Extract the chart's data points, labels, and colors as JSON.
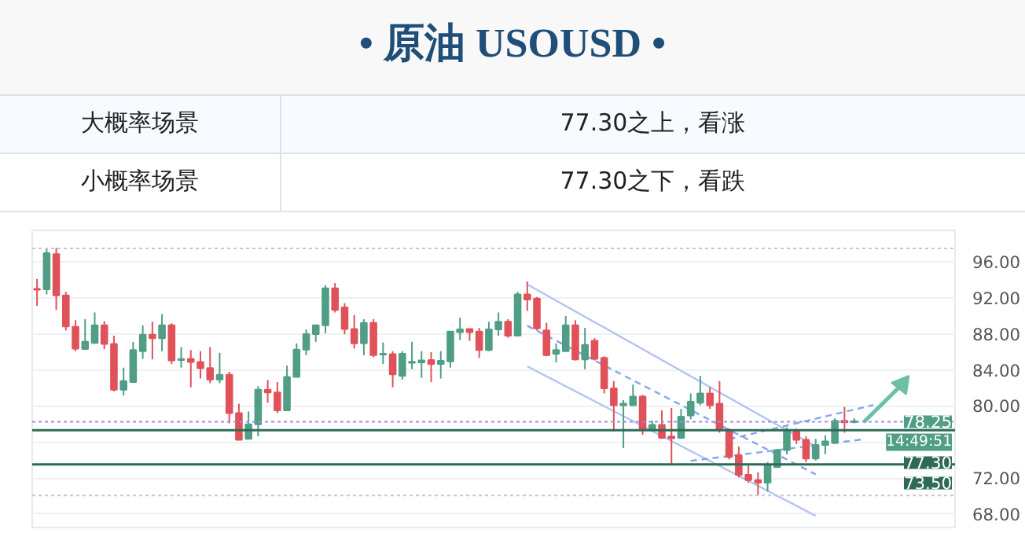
{
  "chart_data": {
    "type": "candlestick",
    "title": "• 原油  USOUSD •",
    "annotations": [
      "大概率场景",
      "77.30之上，看涨",
      "小概率场景",
      "77.30之下，看跌",
      "14:49:51"
    ],
    "categories": [
      null,
      null,
      null,
      null,
      null,
      null,
      null,
      null,
      null,
      null,
      null,
      null,
      null,
      null,
      null,
      null,
      null,
      null,
      null,
      null,
      null,
      null,
      null,
      null,
      null,
      null,
      null,
      null,
      null,
      null,
      null,
      null,
      null,
      null,
      null,
      null,
      null,
      null,
      null,
      null,
      null,
      null,
      null,
      null,
      null,
      null,
      null,
      null,
      null,
      null,
      null,
      null,
      null,
      null,
      null,
      null,
      null,
      null,
      null,
      null,
      null,
      null,
      null,
      null,
      null,
      null,
      null,
      null,
      null,
      null,
      null,
      null,
      null,
      null,
      null,
      null,
      null,
      null,
      null,
      null,
      null,
      null,
      null,
      null,
      null,
      null,
      null,
      null,
      null,
      null,
      null,
      null,
      null,
      null,
      null,
      null
    ],
    "ohlc": [
      [
        93.0,
        94.1,
        91.1,
        92.9
      ],
      [
        92.96,
        97.4,
        92.4,
        96.97
      ],
      [
        96.85,
        97.54,
        90.67,
        92.27
      ],
      [
        92.27,
        92.67,
        88.38,
        88.83
      ],
      [
        88.78,
        89.52,
        86.08,
        86.37
      ],
      [
        86.31,
        89.63,
        86.31,
        87.12
      ],
      [
        87.0,
        90.38,
        87.0,
        88.95
      ],
      [
        88.95,
        89.41,
        86.31,
        86.89
      ],
      [
        86.89,
        87.8,
        81.62,
        81.79
      ],
      [
        81.79,
        84.25,
        81.16,
        82.76
      ],
      [
        82.65,
        87.1,
        82.65,
        86.2
      ],
      [
        86.08,
        88.95,
        85.23,
        87.92
      ],
      [
        87.92,
        89.35,
        85.17,
        87.52
      ],
      [
        87.52,
        90.21,
        86.08,
        88.95
      ],
      [
        88.95,
        89.18,
        84.65,
        85.05
      ],
      [
        85.1,
        86.54,
        84.25,
        85.2
      ],
      [
        85.23,
        86.2,
        82.07,
        84.88
      ],
      [
        84.88,
        86.08,
        83.05,
        84.2
      ],
      [
        84.2,
        86.54,
        82.53,
        82.93
      ],
      [
        82.93,
        85.9,
        82.53,
        83.45
      ],
      [
        83.45,
        83.79,
        78.07,
        79.21
      ],
      [
        79.21,
        80.24,
        76.23,
        76.23
      ],
      [
        76.34,
        79.38,
        76.34,
        77.95
      ],
      [
        77.95,
        82.19,
        76.63,
        81.79
      ],
      [
        81.79,
        82.88,
        80.36,
        81.5
      ],
      [
        81.5,
        82.65,
        79.2,
        79.5
      ],
      [
        79.5,
        84.48,
        79.5,
        83.22
      ],
      [
        83.22,
        86.94,
        83.22,
        86.26
      ],
      [
        86.26,
        88.49,
        85.63,
        87.97
      ],
      [
        87.97,
        88.95,
        87.12,
        88.95
      ],
      [
        88.95,
        93.42,
        88.09,
        93.07
      ],
      [
        93.07,
        93.64,
        90.38,
        90.67
      ],
      [
        90.95,
        91.41,
        87.97,
        88.55
      ],
      [
        88.55,
        90.09,
        86.37,
        86.94
      ],
      [
        86.94,
        89.63,
        85.63,
        89.23
      ],
      [
        89.23,
        89.63,
        85.4,
        85.63
      ],
      [
        85.7,
        87.06,
        84.65,
        85.8
      ],
      [
        85.74,
        86.08,
        82.07,
        83.51
      ],
      [
        83.34,
        86.08,
        82.93,
        85.8
      ],
      [
        84.8,
        87.12,
        84.08,
        84.9
      ],
      [
        84.83,
        86.08,
        83.11,
        85.05
      ],
      [
        85.1,
        85.97,
        82.65,
        84.65
      ],
      [
        84.65,
        86.08,
        83.05,
        85.0
      ],
      [
        84.94,
        88.26,
        84.25,
        88.26
      ],
      [
        88.2,
        89.8,
        87.34,
        88.49
      ],
      [
        88.55,
        88.55,
        87.23,
        88.2
      ],
      [
        88.26,
        88.66,
        85.34,
        86.2
      ],
      [
        86.2,
        89.35,
        86.08,
        88.49
      ],
      [
        88.49,
        90.38,
        87.8,
        89.35
      ],
      [
        89.35,
        89.63,
        87.57,
        87.8
      ],
      [
        87.8,
        92.67,
        87.8,
        92.38
      ],
      [
        92.38,
        93.82,
        90.55,
        91.81
      ],
      [
        91.93,
        92.1,
        88.38,
        88.6
      ],
      [
        88.38,
        89.23,
        85.51,
        85.63
      ],
      [
        85.8,
        86.94,
        84.83,
        86.2
      ],
      [
        86.08,
        89.98,
        86.08,
        88.95
      ],
      [
        88.95,
        89.52,
        85.05,
        85.17
      ],
      [
        85.17,
        88.66,
        84.08,
        86.77
      ],
      [
        87.23,
        87.52,
        85.05,
        85.23
      ],
      [
        85.34,
        85.51,
        81.39,
        81.96
      ],
      [
        81.96,
        82.76,
        77.21,
        80.07
      ],
      [
        80.07,
        80.64,
        75.32,
        80.24
      ],
      [
        80.07,
        82.36,
        80.07,
        81.04
      ],
      [
        81.04,
        81.22,
        76.8,
        77.38
      ],
      [
        77.38,
        78.35,
        77.21,
        77.9
      ],
      [
        77.9,
        79.5,
        76.34,
        76.46
      ],
      [
        76.6,
        79.78,
        73.49,
        76.4
      ],
      [
        76.46,
        79.67,
        76.46,
        78.81
      ],
      [
        78.93,
        81.39,
        78.52,
        80.47
      ],
      [
        80.36,
        83.34,
        80.07,
        81.39
      ],
      [
        81.39,
        82.07,
        79.67,
        80.07
      ],
      [
        80.24,
        82.76,
        77.03,
        77.32
      ],
      [
        77.32,
        77.5,
        74.06,
        74.34
      ],
      [
        74.51,
        75.49,
        72.05,
        72.34
      ],
      [
        72.34,
        73.37,
        71.48,
        71.77
      ],
      [
        71.77,
        72.63,
        70.05,
        71.48
      ],
      [
        71.48,
        73.77,
        70.5,
        73.49
      ],
      [
        73.2,
        75.2,
        73.2,
        75.09
      ],
      [
        75.09,
        77.61,
        74.63,
        77.21
      ],
      [
        77.21,
        77.5,
        75.78,
        76.23
      ],
      [
        76.23,
        76.63,
        73.77,
        74.17
      ],
      [
        74.17,
        76.34,
        73.94,
        75.66
      ],
      [
        75.66,
        76.74,
        74.63,
        76.06
      ],
      [
        75.89,
        78.64,
        75.89,
        78.35
      ],
      [
        78.35,
        79.9,
        77.03,
        78.18
      ],
      [
        78.2,
        78.64,
        78.07,
        78.3
      ],
      null,
      null,
      null,
      null,
      null,
      null,
      null,
      null,
      null,
      null
    ],
    "colors": [
      "#e0525a",
      "#4f9e85",
      "#e0525a",
      "#e0525a",
      "#e0525a",
      "#4f9e85",
      "#4f9e85",
      "#e0525a",
      "#e0525a",
      "#4f9e85",
      "#4f9e85",
      "#4f9e85",
      "#e0525a",
      "#4f9e85",
      "#e0525a",
      "#4f9e85",
      "#e0525a",
      "#e0525a",
      "#e0525a",
      "#4f9e85",
      "#e0525a",
      "#e0525a",
      "#4f9e85",
      "#4f9e85",
      "#e0525a",
      "#e0525a",
      "#4f9e85",
      "#4f9e85",
      "#4f9e85",
      "#4f9e85",
      "#4f9e85",
      "#e0525a",
      "#e0525a",
      "#e0525a",
      "#4f9e85",
      "#e0525a",
      "#4f9e85",
      "#e0525a",
      "#4f9e85",
      "#4f9e85",
      "#4f9e85",
      "#e0525a",
      "#4f9e85",
      "#4f9e85",
      "#4f9e85",
      "#e0525a",
      "#e0525a",
      "#4f9e85",
      "#4f9e85",
      "#e0525a",
      "#4f9e85",
      "#e0525a",
      "#e0525a",
      "#e0525a",
      "#4f9e85",
      "#4f9e85",
      "#e0525a",
      "#4f9e85",
      "#e0525a",
      "#e0525a",
      "#e0525a",
      "#4f9e85",
      "#4f9e85",
      "#e0525a",
      "#4f9e85",
      "#e0525a",
      "#e0525a",
      "#4f9e85",
      "#4f9e85",
      "#4f9e85",
      "#e0525a",
      "#e0525a",
      "#e0525a",
      "#e0525a",
      "#e0525a",
      "#e0525a",
      "#4f9e85",
      "#4f9e85",
      "#4f9e85",
      "#e0525a",
      "#e0525a",
      "#4f9e85",
      "#4f9e85",
      "#4f9e85",
      "#e0525a",
      "#4f9e85",
      null,
      null,
      null,
      null,
      null,
      null,
      null,
      null,
      null,
      null
    ],
    "series": [
      {
        "type": "line",
        "color": "#b4c4f2",
        "line_style": "solid",
        "values": [
          null,
          null,
          null,
          null,
          null,
          null,
          null,
          null,
          null,
          null,
          null,
          null,
          null,
          null,
          null,
          null,
          null,
          null,
          null,
          null,
          null,
          null,
          null,
          null,
          null,
          null,
          null,
          null,
          null,
          null,
          null,
          null,
          null,
          null,
          null,
          null,
          null,
          null,
          null,
          null,
          null,
          null,
          null,
          null,
          null,
          null,
          null,
          null,
          null,
          null,
          null,
          93.5,
          null,
          null,
          null,
          null,
          null,
          null,
          null,
          null,
          null,
          null,
          null,
          null,
          null,
          null,
          null,
          null,
          null,
          null,
          null,
          null,
          null,
          null,
          null,
          null,
          null,
          null,
          null,
          null,
          null,
          75.5,
          null,
          null,
          null,
          null,
          null,
          null,
          null,
          null,
          null,
          null,
          null,
          null,
          null,
          null
        ]
      },
      {
        "type": "line",
        "color": "#b4c4f2",
        "line_style": "solid",
        "values": [
          null,
          null,
          null,
          null,
          null,
          null,
          null,
          null,
          null,
          null,
          null,
          null,
          null,
          null,
          null,
          null,
          null,
          null,
          null,
          null,
          null,
          null,
          null,
          null,
          null,
          null,
          null,
          null,
          null,
          null,
          null,
          null,
          null,
          null,
          null,
          null,
          null,
          null,
          null,
          null,
          null,
          null,
          null,
          null,
          null,
          null,
          null,
          null,
          null,
          null,
          null,
          84.4,
          null,
          null,
          null,
          null,
          null,
          null,
          null,
          null,
          null,
          null,
          null,
          null,
          null,
          null,
          null,
          null,
          null,
          null,
          null,
          null,
          null,
          null,
          null,
          null,
          null,
          null,
          null,
          null,
          null,
          67.8,
          null,
          null,
          null,
          null,
          null,
          null,
          null,
          null,
          null,
          null,
          null,
          null,
          null,
          null
        ]
      },
      {
        "type": "line",
        "color": "#86a6ec",
        "line_style": "dashed",
        "values": [
          null,
          null,
          null,
          null,
          null,
          null,
          null,
          null,
          null,
          null,
          null,
          null,
          null,
          null,
          null,
          null,
          null,
          null,
          null,
          null,
          null,
          null,
          null,
          null,
          null,
          null,
          null,
          null,
          null,
          null,
          null,
          null,
          null,
          null,
          null,
          null,
          null,
          null,
          null,
          null,
          null,
          null,
          null,
          null,
          null,
          null,
          null,
          null,
          null,
          null,
          null,
          88.9,
          null,
          null,
          null,
          null,
          null,
          null,
          null,
          null,
          null,
          null,
          null,
          null,
          null,
          null,
          null,
          null,
          null,
          null,
          null,
          null,
          null,
          null,
          null,
          null,
          null,
          null,
          null,
          null,
          null,
          72.4,
          null,
          null,
          null,
          null,
          null,
          null,
          null,
          null,
          null,
          null,
          null,
          null,
          null,
          null
        ]
      },
      {
        "type": "line",
        "color": "#86a6ec",
        "line_style": "dashed",
        "values": [
          null,
          null,
          null,
          null,
          null,
          null,
          null,
          null,
          null,
          null,
          null,
          null,
          null,
          null,
          null,
          null,
          null,
          null,
          null,
          null,
          null,
          null,
          null,
          null,
          null,
          null,
          null,
          null,
          null,
          null,
          null,
          null,
          null,
          null,
          null,
          null,
          null,
          null,
          null,
          null,
          null,
          null,
          null,
          null,
          null,
          null,
          null,
          null,
          null,
          null,
          null,
          null,
          null,
          null,
          null,
          null,
          null,
          null,
          null,
          null,
          null,
          null,
          null,
          null,
          null,
          null,
          null,
          null,
          73.9,
          null,
          null,
          null,
          null,
          null,
          null,
          null,
          null,
          null,
          null,
          null,
          null,
          null,
          null,
          null,
          null,
          null,
          76.3,
          null,
          null,
          null,
          null,
          null,
          null,
          null,
          null,
          null
        ]
      },
      {
        "type": "line",
        "color": "#86a6ec",
        "line_style": "dashed",
        "values": [
          null,
          null,
          null,
          null,
          null,
          null,
          null,
          null,
          null,
          null,
          null,
          null,
          null,
          null,
          null,
          null,
          null,
          null,
          null,
          null,
          null,
          null,
          null,
          null,
          null,
          null,
          null,
          null,
          null,
          null,
          null,
          null,
          null,
          null,
          null,
          null,
          null,
          null,
          null,
          null,
          null,
          null,
          null,
          null,
          null,
          null,
          null,
          null,
          null,
          null,
          null,
          null,
          null,
          null,
          null,
          null,
          null,
          null,
          null,
          null,
          null,
          null,
          null,
          null,
          null,
          null,
          null,
          null,
          null,
          null,
          null,
          null,
          76.3,
          null,
          null,
          null,
          null,
          null,
          null,
          null,
          null,
          null,
          null,
          null,
          null,
          null,
          null,
          80.1,
          null,
          null,
          null,
          null,
          null,
          null,
          null,
          null
        ]
      },
      {
        "type": "line",
        "color": "#6dbfa5",
        "line_style": "solid",
        "marker": "triangle",
        "values": [
          null,
          null,
          null,
          null,
          null,
          null,
          null,
          null,
          null,
          null,
          null,
          null,
          null,
          null,
          null,
          null,
          null,
          null,
          null,
          null,
          null,
          null,
          null,
          null,
          null,
          null,
          null,
          null,
          null,
          null,
          null,
          null,
          null,
          null,
          null,
          null,
          null,
          null,
          null,
          null,
          null,
          null,
          null,
          null,
          null,
          null,
          null,
          null,
          null,
          null,
          null,
          null,
          null,
          null,
          null,
          null,
          null,
          null,
          null,
          null,
          null,
          null,
          null,
          null,
          null,
          null,
          null,
          null,
          null,
          null,
          null,
          null,
          null,
          null,
          null,
          null,
          null,
          null,
          null,
          null,
          null,
          null,
          null,
          null,
          null,
          null,
          78.2,
          null,
          null,
          null,
          82.4,
          null,
          null,
          null,
          null,
          null
        ]
      }
    ],
    "ref_lines": [
      {
        "axis": "y",
        "value": 97.5,
        "color": "#c8c8c8",
        "line_style": "dotted"
      },
      {
        "axis": "y",
        "value": 70.05,
        "color": "#c8c8c8",
        "line_style": "dotted"
      },
      {
        "axis": "y",
        "value": 78.25,
        "label": "78.25",
        "color": "#9b8fe0",
        "line_style": "dotted"
      },
      {
        "axis": "y",
        "value": 77.3,
        "label": "77.30",
        "color": "#2e6b57",
        "line_style": "solid"
      },
      {
        "axis": "y",
        "value": 73.5,
        "label": "73.50",
        "color": "#2e6b57",
        "line_style": "solid"
      }
    ],
    "ylim": [
      66.5,
      99.5
    ],
    "yticks": [
      {
        "value": 68,
        "label": "68.00"
      },
      {
        "value": 72,
        "label": "72.00"
      },
      {
        "value": 76,
        "label": null
      },
      {
        "value": 80,
        "label": "80.00"
      },
      {
        "value": 84,
        "label": "84.00"
      },
      {
        "value": 88,
        "label": "88.00"
      },
      {
        "value": 92,
        "label": "92.00"
      },
      {
        "value": 96,
        "label": "96.00"
      }
    ],
    "grid": "y",
    "tick_labels": "y"
  }
}
